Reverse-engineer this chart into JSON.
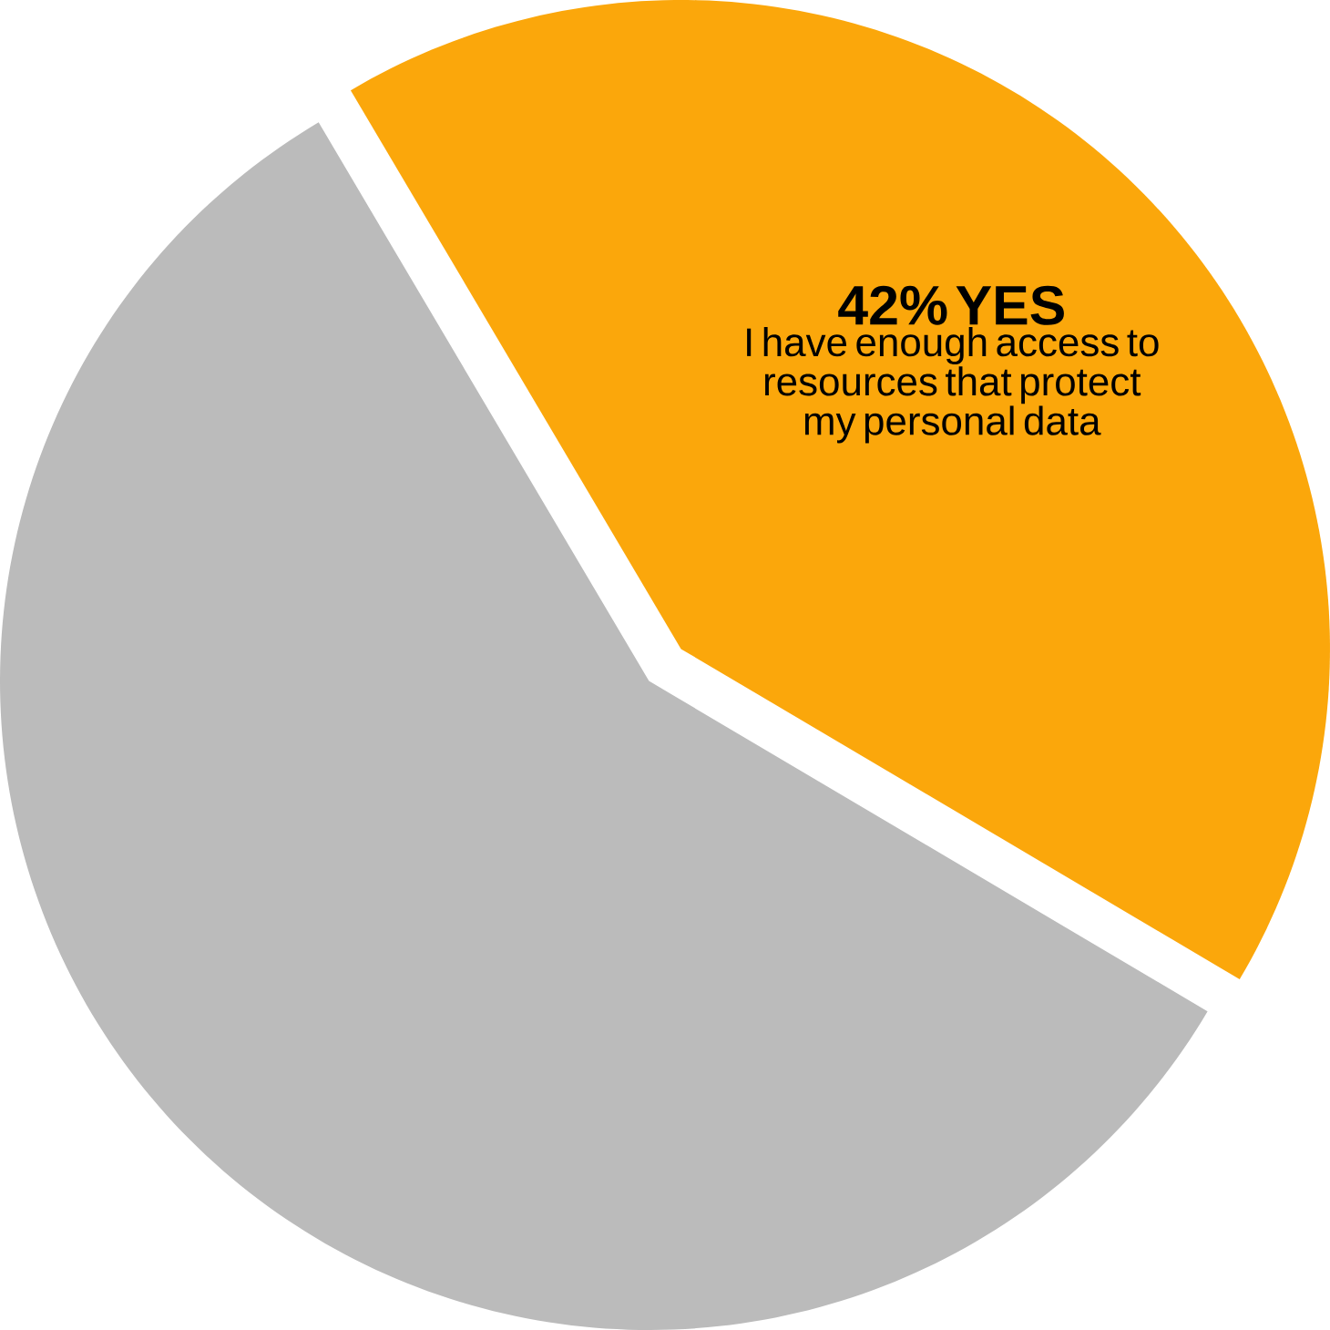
{
  "chart_data": {
    "type": "pie",
    "categories": [
      "YES",
      null
    ],
    "values": [
      42,
      58
    ],
    "colors": [
      "#fba70b",
      "#bbbbbb"
    ],
    "value_labels": [
      "42%",
      null
    ],
    "annotations": [
      "I have enough access to resources that protect my personal data"
    ]
  }
}
